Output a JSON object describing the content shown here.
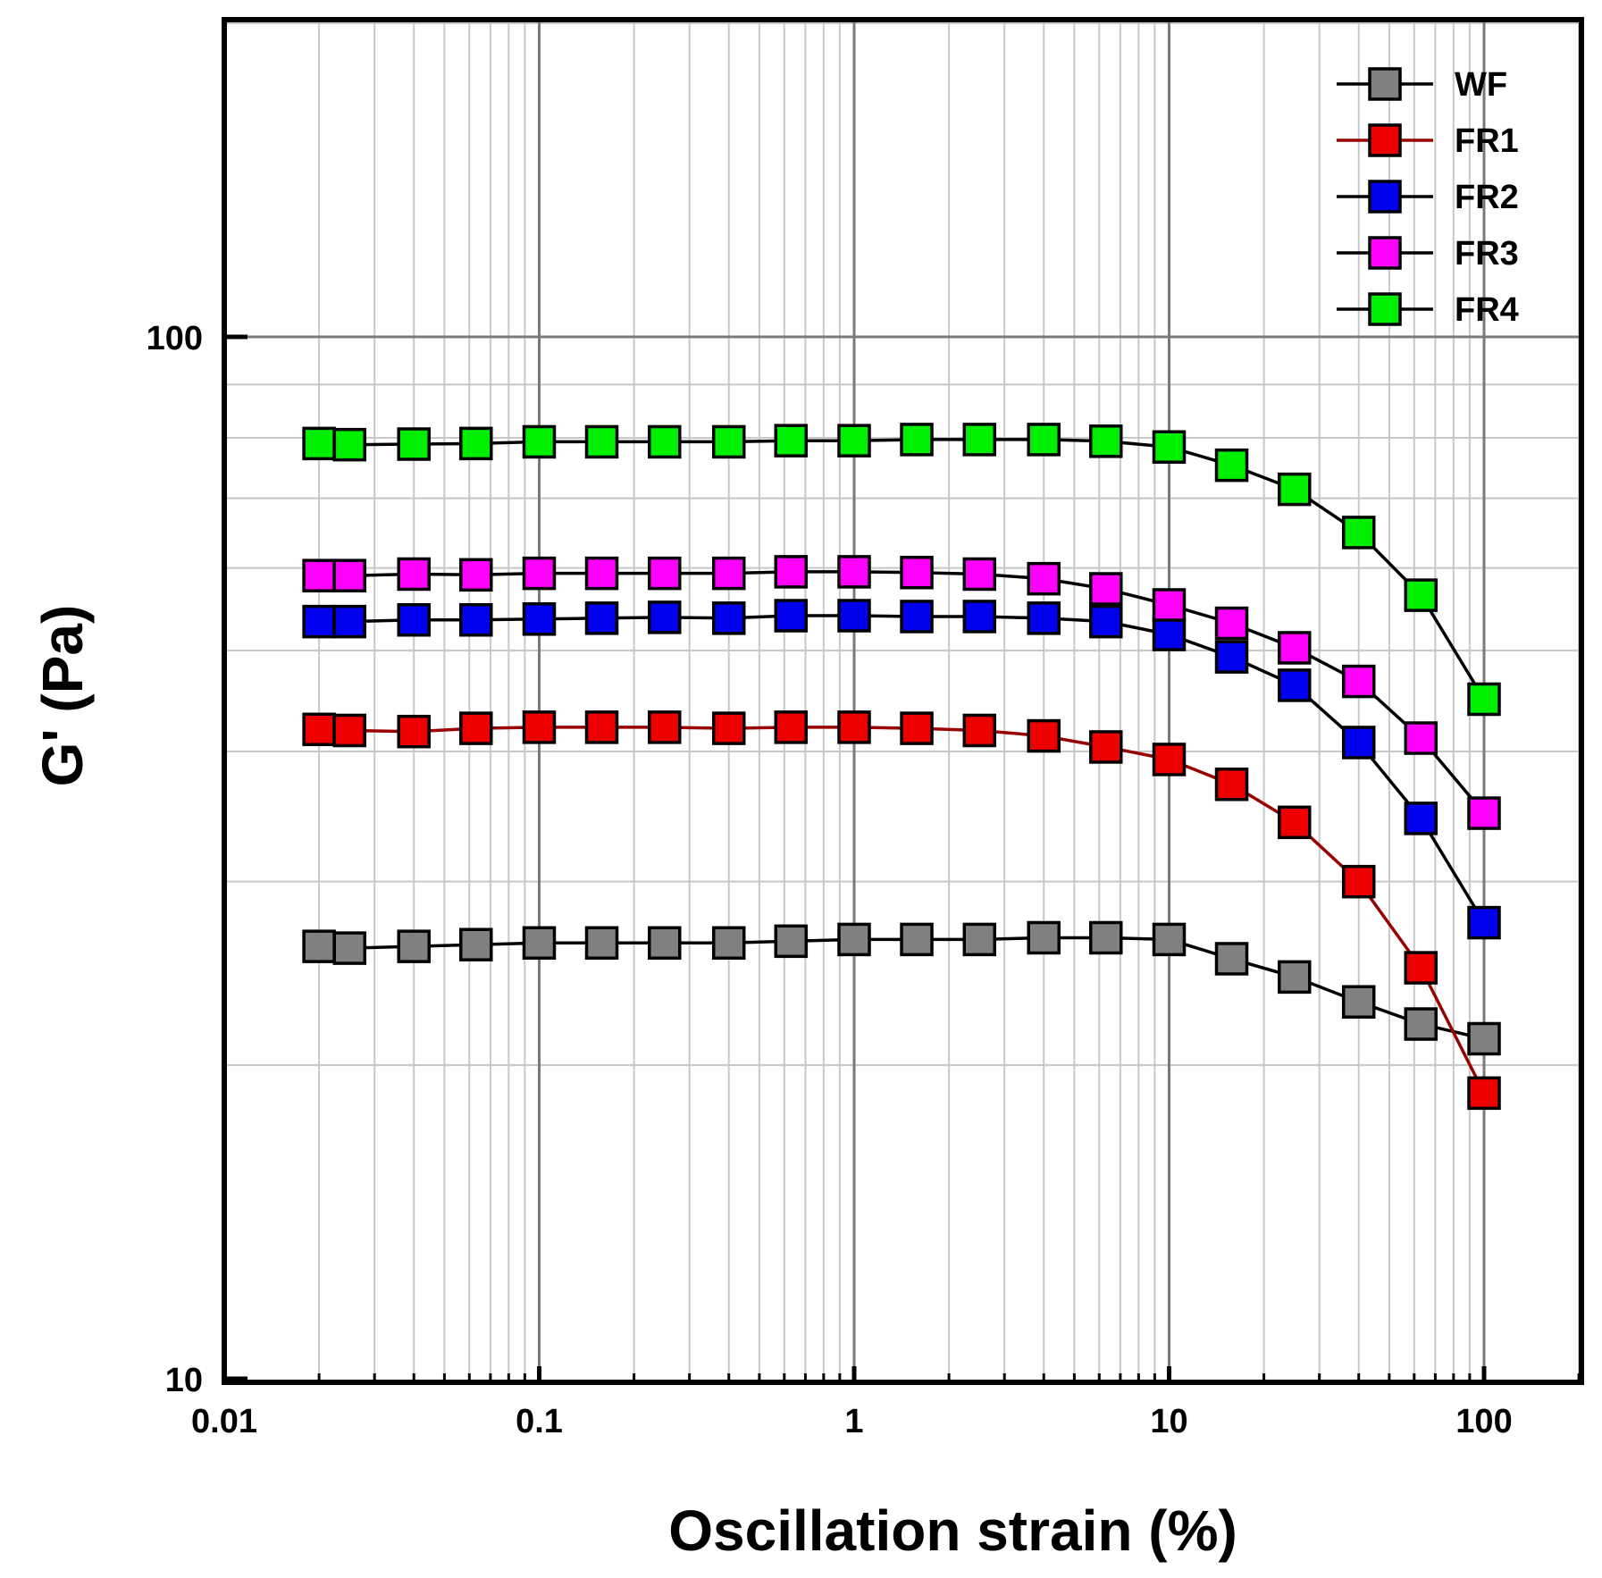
{
  "chart_data": {
    "type": "line",
    "xlabel": "Oscillation strain (%)",
    "ylabel": "G' (Pa)",
    "x_scale": "log",
    "y_scale": "log",
    "xlim": [
      0.01,
      200
    ],
    "ylim": [
      10,
      300
    ],
    "x_ticks": [
      {
        "value": 0.01,
        "label": "0.01"
      },
      {
        "value": 0.1,
        "label": "0.1"
      },
      {
        "value": 1,
        "label": "1"
      },
      {
        "value": 10,
        "label": "10"
      },
      {
        "value": 100,
        "label": "100"
      }
    ],
    "y_ticks": [
      {
        "value": 10,
        "label": "10"
      },
      {
        "value": 100,
        "label": "100"
      }
    ],
    "grid": true,
    "legend_position": "top-right",
    "x": [
      0.02,
      0.025,
      0.04,
      0.063,
      0.1,
      0.158,
      0.25,
      0.4,
      0.63,
      1,
      1.58,
      2.5,
      4,
      6.3,
      10,
      15.8,
      25,
      40,
      63,
      100
    ],
    "series": [
      {
        "name": "WF",
        "color": "#808080",
        "line_color": "#000000",
        "values": [
          26.0,
          25.9,
          26.0,
          26.1,
          26.2,
          26.2,
          26.2,
          26.2,
          26.3,
          26.4,
          26.4,
          26.4,
          26.5,
          26.5,
          26.4,
          25.3,
          24.3,
          23.0,
          21.9,
          21.2
        ]
      },
      {
        "name": "FR1",
        "color": "#ee0000",
        "line_color": "#990000",
        "values": [
          42.0,
          41.9,
          41.8,
          42.1,
          42.2,
          42.2,
          42.2,
          42.1,
          42.2,
          42.2,
          42.1,
          41.9,
          41.4,
          40.4,
          39.3,
          37.2,
          34.2,
          30.0,
          24.8,
          18.8
        ]
      },
      {
        "name": "FR2",
        "color": "#0000ee",
        "line_color": "#000000",
        "values": [
          53.3,
          53.3,
          53.5,
          53.5,
          53.6,
          53.7,
          53.8,
          53.7,
          54.0,
          54.0,
          53.9,
          53.9,
          53.7,
          53.3,
          51.8,
          49.3,
          46.3,
          40.8,
          34.5,
          27.4
        ]
      },
      {
        "name": "FR3",
        "color": "#ff00ff",
        "line_color": "#000000",
        "values": [
          59.0,
          59.0,
          59.2,
          59.1,
          59.3,
          59.3,
          59.3,
          59.3,
          59.5,
          59.5,
          59.4,
          59.2,
          58.6,
          57.3,
          55.3,
          53.1,
          50.3,
          46.7,
          41.2,
          34.9
        ]
      },
      {
        "name": "FR4",
        "color": "#00ee00",
        "line_color": "#000000",
        "values": [
          79.0,
          78.8,
          78.9,
          79.0,
          79.3,
          79.3,
          79.3,
          79.3,
          79.5,
          79.5,
          79.7,
          79.7,
          79.7,
          79.4,
          78.4,
          75.3,
          71.4,
          64.9,
          56.5,
          44.9
        ]
      }
    ]
  }
}
